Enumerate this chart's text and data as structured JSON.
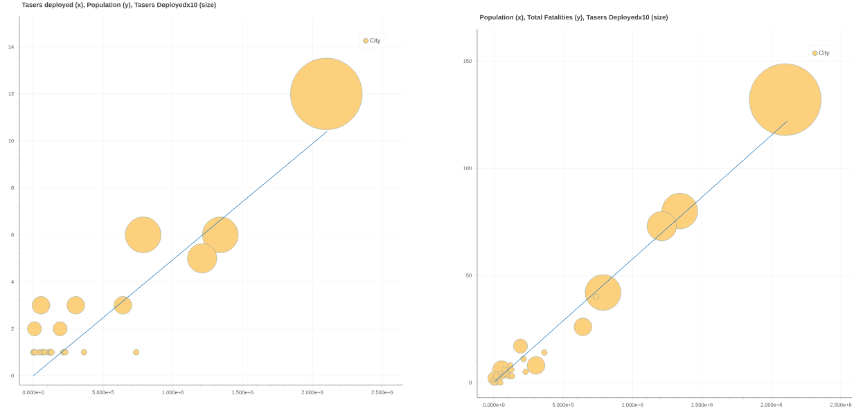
{
  "chart_data": [
    {
      "type": "bubble",
      "title": "Tasers deployed (x), Population (y), Tasers Deployedx10 (size)",
      "series": [
        {
          "name": "City",
          "color": "#fdd07e",
          "x": [
            0,
            5000,
            16000,
            46000,
            66000,
            76000,
            84000,
            110000,
            118000,
            126000,
            131000,
            214000,
            229000,
            364000,
            737000,
            8000,
            192000,
            55000,
            304000,
            642000,
            1210000,
            787000,
            1340000,
            2100000
          ],
          "values": [
            1,
            1,
            1,
            1,
            1,
            1,
            1,
            1,
            1,
            1,
            1,
            1,
            1,
            1,
            1,
            2,
            2,
            3,
            3,
            3,
            5,
            6,
            6,
            12
          ],
          "sizes": [
            0.007,
            0.007,
            0.007,
            0.007,
            0.007,
            0.007,
            0.007,
            0.007,
            0.007,
            0.007,
            0.007,
            0.007,
            0.007,
            0.007,
            0.007,
            0.04,
            0.04,
            0.063,
            0.063,
            0.063,
            0.17,
            0.25,
            0.25,
            1
          ]
        },
        {
          "type": "line",
          "color": "#2b7bba",
          "x": [
            0,
            2105000
          ],
          "values": [
            0,
            10.4
          ]
        }
      ],
      "xlim": [
        -100000,
        2650000
      ],
      "ylim": [
        -0.4,
        15.3
      ],
      "xticks": [
        {
          "value": 0,
          "label": "0.000e+0"
        },
        {
          "value": 500000,
          "label": "5.000e+5"
        },
        {
          "value": 1000000,
          "label": "1.000e+6"
        },
        {
          "value": 1500000,
          "label": "1.500e+6"
        },
        {
          "value": 2000000,
          "label": "2.000e+6"
        },
        {
          "value": 2500000,
          "label": "2.500e+6"
        }
      ],
      "yticks": [
        0,
        2,
        4,
        6,
        8,
        10,
        12,
        14
      ],
      "grid": true,
      "legend": "top right"
    },
    {
      "type": "bubble",
      "title": "Population (x), Total Fatalities (y), Tasers Deployedx10 (size)",
      "series": [
        {
          "name": "City",
          "color": "#fdd07e",
          "x": [
            0,
            5000,
            16000,
            46000,
            66000,
            76000,
            84000,
            110000,
            118000,
            126000,
            131000,
            214000,
            229000,
            364000,
            737000,
            8000,
            192000,
            55000,
            304000,
            642000,
            1210000,
            787000,
            1340000,
            2100000
          ],
          "values": [
            1,
            0,
            3,
            0,
            3,
            6,
            4,
            3,
            8,
            6,
            3,
            11,
            5,
            14,
            40,
            2,
            17,
            6,
            8,
            26,
            73,
            42,
            80,
            132
          ],
          "sizes": [
            0.007,
            0.007,
            0.007,
            0.007,
            0.007,
            0.007,
            0.007,
            0.007,
            0.007,
            0.007,
            0.007,
            0.007,
            0.007,
            0.007,
            0.007,
            0.04,
            0.04,
            0.063,
            0.063,
            0.063,
            0.17,
            0.25,
            0.25,
            1
          ]
        },
        {
          "type": "line",
          "color": "#2b7bba",
          "x": [
            0,
            2115000
          ],
          "values": [
            0,
            122
          ]
        }
      ],
      "xlim": [
        -120000,
        2580000
      ],
      "ylim": [
        -7,
        165
      ],
      "xticks": [
        {
          "value": 0,
          "label": "0.000e+0"
        },
        {
          "value": 500000,
          "label": "5.000e+5"
        },
        {
          "value": 1000000,
          "label": "1.000e+6"
        },
        {
          "value": 1500000,
          "label": "1.500e+6"
        },
        {
          "value": 2000000,
          "label": "2.000e+6"
        },
        {
          "value": 2500000,
          "label": "2.500e+6"
        }
      ],
      "yticks": [
        0,
        50,
        100,
        150
      ],
      "grid": true,
      "legend": "top right"
    }
  ]
}
